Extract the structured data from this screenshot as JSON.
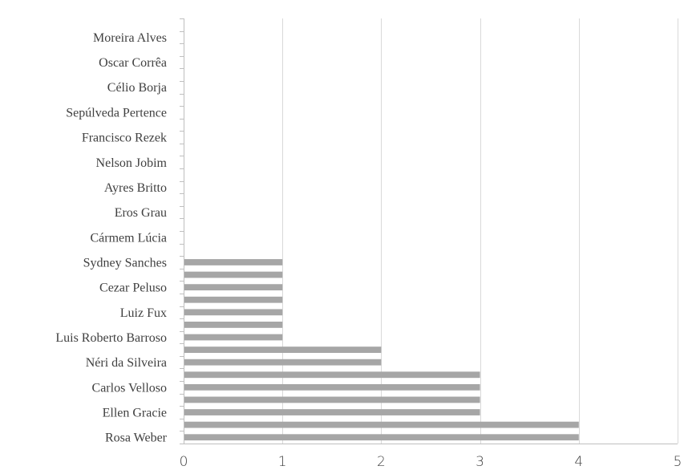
{
  "chart_data": {
    "type": "bar",
    "orientation": "horizontal",
    "title": "",
    "xlabel": "",
    "ylabel": "",
    "xlim": [
      0,
      5
    ],
    "x_ticks": [
      "0",
      "1",
      "2",
      "3",
      "4",
      "5"
    ],
    "grid": "vertical",
    "legend": "none",
    "bar_color": "#a6a6a6",
    "categories": [
      "Rosa Weber",
      "",
      "Ellen Gracie",
      "",
      "Carlos Velloso",
      "",
      "Néri da Silveira",
      "",
      "Luis Roberto Barroso",
      "",
      "Luiz Fux",
      "",
      "Cezar Peluso",
      "",
      "Sydney Sanches",
      "",
      "Cármem Lúcia",
      "",
      "Eros Grau",
      "",
      "Ayres Britto",
      "",
      "Nelson Jobim",
      "",
      "Francisco Rezek",
      "",
      "Sepúlveda Pertence",
      "",
      "Célio Borja",
      "",
      "Oscar Corrêa",
      "",
      "Moreira Alves",
      ""
    ],
    "values": [
      4,
      4,
      3,
      3,
      3,
      3,
      2,
      2,
      1,
      1,
      1,
      1,
      1,
      1,
      1,
      0,
      0,
      0,
      0,
      0,
      0,
      0,
      0,
      0,
      0,
      0,
      0,
      0,
      0,
      0,
      0,
      0,
      0,
      0
    ]
  }
}
